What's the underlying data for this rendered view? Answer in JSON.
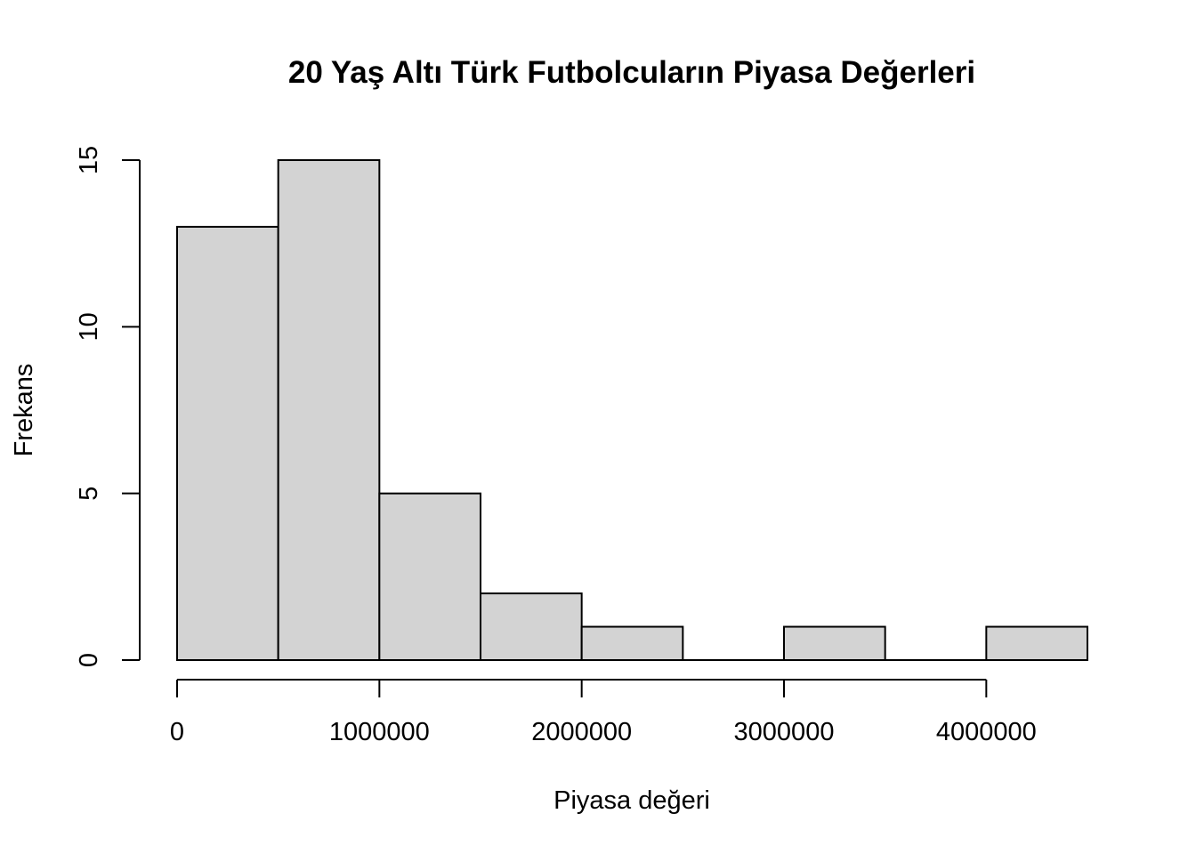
{
  "chart_data": {
    "type": "bar",
    "subtype": "histogram",
    "title": "20 Yaş Altı Türk Futbolcuların Piyasa Değerleri",
    "xlabel": "Piyasa değeri",
    "ylabel": "Frekans",
    "bins": [
      {
        "start": 0,
        "end": 500000,
        "count": 13
      },
      {
        "start": 500000,
        "end": 1000000,
        "count": 15
      },
      {
        "start": 1000000,
        "end": 1500000,
        "count": 5
      },
      {
        "start": 1500000,
        "end": 2000000,
        "count": 2
      },
      {
        "start": 2000000,
        "end": 2500000,
        "count": 1
      },
      {
        "start": 2500000,
        "end": 3000000,
        "count": 0
      },
      {
        "start": 3000000,
        "end": 3500000,
        "count": 1
      },
      {
        "start": 3500000,
        "end": 4000000,
        "count": 0
      },
      {
        "start": 4000000,
        "end": 4500000,
        "count": 1
      }
    ],
    "xlim": [
      0,
      4500000
    ],
    "ylim": [
      0,
      15
    ],
    "xticks": [
      {
        "value": 0,
        "label": "0"
      },
      {
        "value": 1000000,
        "label": "1000000"
      },
      {
        "value": 2000000,
        "label": "2000000"
      },
      {
        "value": 3000000,
        "label": "3000000"
      },
      {
        "value": 4000000,
        "label": "4000000"
      }
    ],
    "yticks": [
      {
        "value": 0,
        "label": "0"
      },
      {
        "value": 5,
        "label": "5"
      },
      {
        "value": 10,
        "label": "10"
      },
      {
        "value": 15,
        "label": "15"
      }
    ],
    "bar_fill": "#d3d3d3",
    "bar_stroke": "#000000",
    "grid": false,
    "legend": "none"
  }
}
